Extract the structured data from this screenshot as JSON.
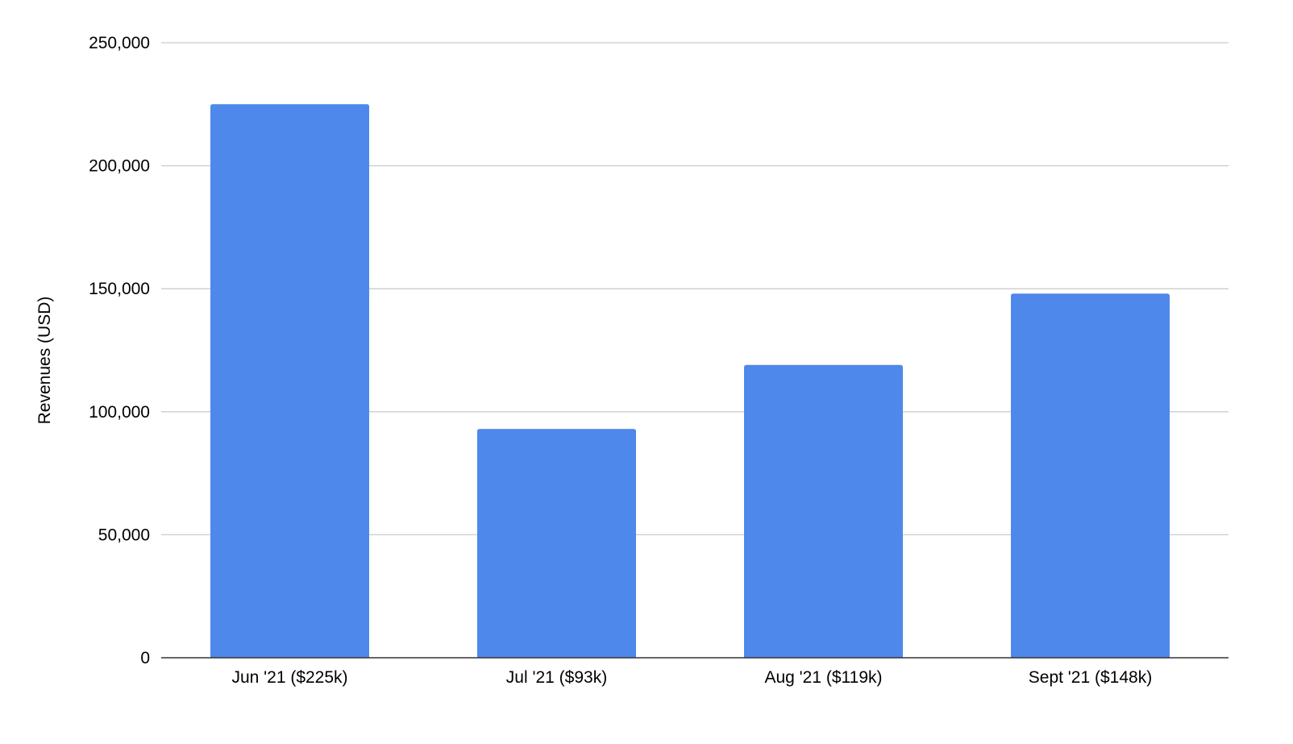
{
  "chart_data": {
    "type": "bar",
    "title": "",
    "xlabel": "",
    "ylabel": "Revenues (USD)",
    "categories": [
      "Jun '21 ($225k)",
      "Jul '21 ($93k)",
      "Aug '21 ($119k)",
      "Sept '21 ($148k)"
    ],
    "values": [
      225000,
      93000,
      119000,
      148000
    ],
    "ylim": [
      0,
      250000
    ],
    "yticks": [
      0,
      50000,
      100000,
      150000,
      200000,
      250000
    ],
    "ytick_labels": [
      "0",
      "50,000",
      "100,000",
      "150,000",
      "200,000",
      "250,000"
    ],
    "grid": true,
    "legend": "none",
    "colors": {
      "bar": "#4e88ea",
      "grid": "#cccccc",
      "axis": "#333333"
    }
  }
}
